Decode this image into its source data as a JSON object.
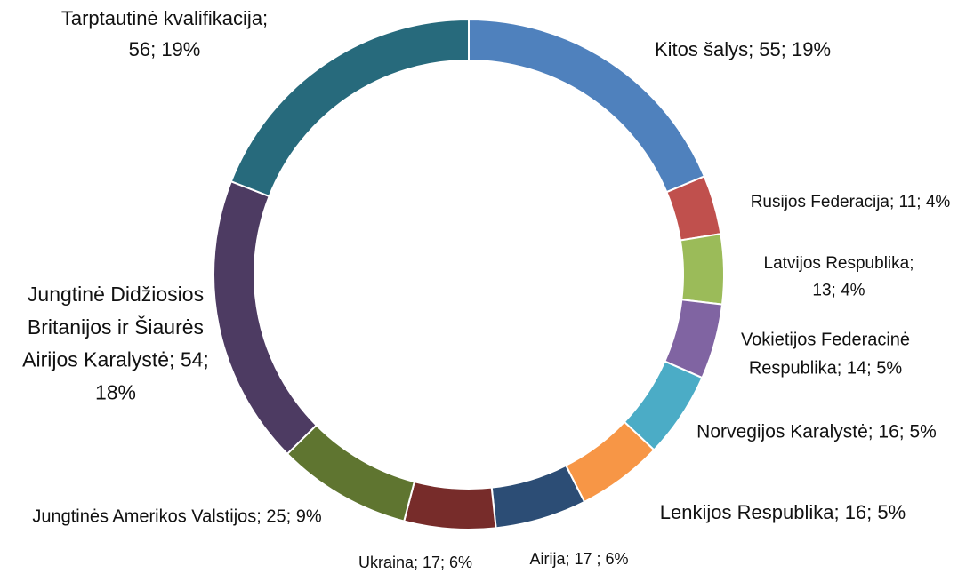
{
  "chart_data": {
    "type": "donut",
    "values": [
      55,
      11,
      13,
      14,
      16,
      16,
      17,
      17,
      25,
      54,
      56
    ],
    "value_labels": [
      [
        "Kitos šalys; 55; 19%"
      ],
      [
        "Rusijos Federacija;  11; 4%"
      ],
      [
        "Latvijos Respublika;",
        "13; 4%"
      ],
      [
        "Vokietijos Federacinė",
        "Respublika;  14; 5%"
      ],
      [
        "Norvegijos Karalystė; 16; 5%"
      ],
      [
        "Lenkijos Respublika;  16; 5%"
      ],
      [
        "Airija; 17 ; 6%"
      ],
      [
        "Ukraina; 17; 6%"
      ],
      [
        "Jungtinės Amerikos Valstijos; 25; 9%"
      ],
      [
        "Jungtinė  Didžiosios",
        "Britanijos ir Šiaurės",
        "Airijos Karalystė; 54;",
        "18%"
      ],
      [
        "Tarptautinė kvalifikacija;",
        "56; 19%"
      ]
    ],
    "colors": [
      "#4f81bd",
      "#c0504d",
      "#9bbb59",
      "#8064a2",
      "#4bacc6",
      "#f79646",
      "#2c4d75",
      "#772c2a",
      "#5f7530",
      "#4d3b62",
      "#276a7c"
    ]
  }
}
